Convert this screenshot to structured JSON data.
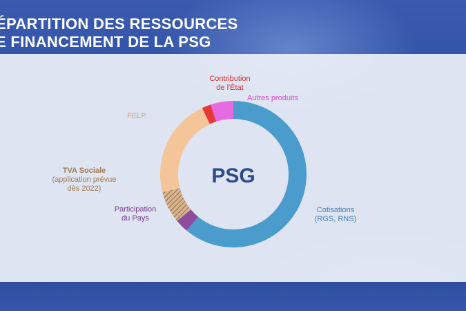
{
  "header": {
    "title_line1": "ÉPARTITION DES RESSOURCES",
    "title_line2": "E FINANCEMENT DE LA PSG"
  },
  "chart_data": {
    "type": "pie",
    "center_label": "PSG",
    "hole": "donut",
    "slices": [
      {
        "label": [
          "Cotisations",
          "(RGS, RNS)"
        ],
        "value": 61,
        "color": "#4a9ccc",
        "label_color": "#3f7fb8"
      },
      {
        "label": [
          "Participation",
          "du Pays"
        ],
        "value": 3,
        "color": "#8e4d9c",
        "label_color": "#7a3d8c"
      },
      {
        "label": [
          "TVA Sociale",
          "(application prévue",
          "dès 2022)"
        ],
        "value": 7,
        "color": "#c9a07a",
        "label_color": "#a07a52",
        "pattern": "hatched"
      },
      {
        "label": [
          "FELP"
        ],
        "value": 22,
        "color": "#f3c598",
        "label_color": "#d8a06a"
      },
      {
        "label": [
          "Contribution",
          "de l'État"
        ],
        "value": 2,
        "color": "#e63a3a",
        "label_color": "#d42a2a"
      },
      {
        "label": [
          "Autres produits"
        ],
        "value": 5,
        "color": "#e66be0",
        "label_color": "#d24ecb"
      }
    ]
  }
}
